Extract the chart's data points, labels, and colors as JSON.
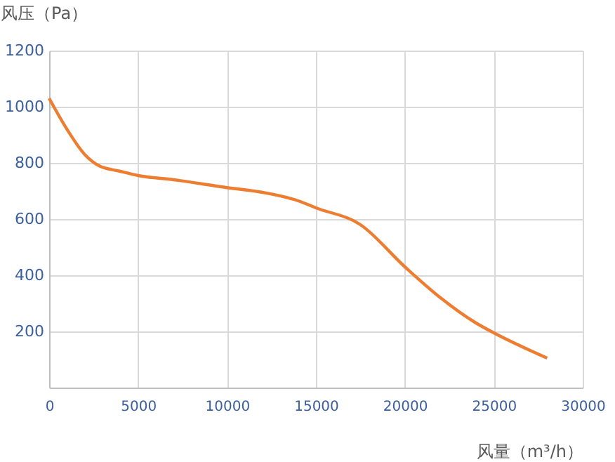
{
  "chart_data": {
    "type": "line",
    "xlabel": "风量（m³/h）",
    "ylabel": "风压（Pa）",
    "x": [
      0,
      1000,
      2000,
      2800,
      4000,
      5000,
      7000,
      10000,
      12000,
      14000,
      15000,
      17500,
      20000,
      22000,
      24000,
      25000,
      28000
    ],
    "series": [
      {
        "color": "#ed7d31",
        "values": [
          1030,
          920,
          830,
          790,
          770,
          755,
          740,
          712,
          695,
          665,
          640,
          580,
          430,
          320,
          230,
          195,
          105
        ]
      }
    ],
    "xlim": [
      0,
      30000
    ],
    "xticks": [
      0,
      5000,
      10000,
      15000,
      20000,
      25000,
      30000
    ],
    "ylim": [
      0,
      1200
    ],
    "yticks": [
      {
        "value": 0,
        "label": null
      },
      200,
      400,
      600,
      800,
      1000,
      1200
    ],
    "grid": true,
    "marker": "none",
    "line_style": "solid"
  }
}
